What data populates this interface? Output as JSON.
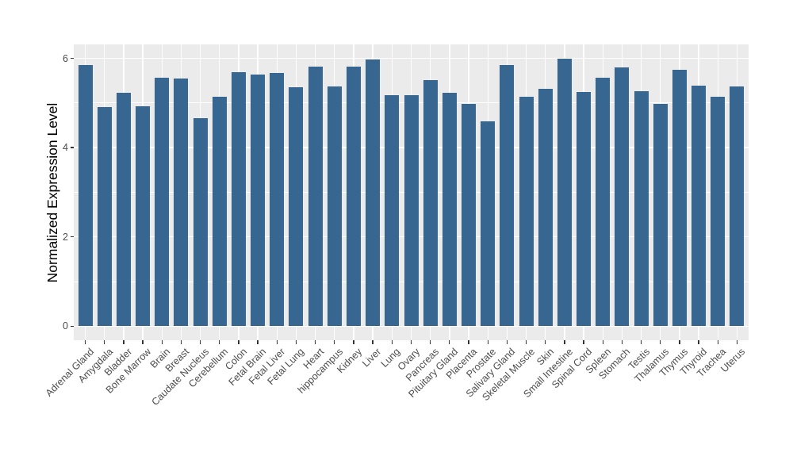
{
  "chart_data": {
    "type": "bar",
    "title": "",
    "xlabel": "",
    "ylabel": "Normalized Expression Level",
    "categories": [
      "Adrenal Gland",
      "Amygdala",
      "Bladder",
      "Bone Marrow",
      "Brain",
      "Breast",
      "Caudate Nucleus",
      "Cerebellum",
      "Colon",
      "Fetal Brain",
      "Fetal Liver",
      "Fetal Lung",
      "Heart",
      "hippocampus",
      "Kidney",
      "Liver",
      "Lung",
      "Ovary",
      "Pancreas",
      "Pituitary Gland",
      "Placenta",
      "Prostate",
      "Salivary Gland",
      "Skeletal Muscle",
      "Skin",
      "Small Intestine",
      "Spinal Cord",
      "Spleen",
      "Stomach",
      "Testis",
      "Thalamus",
      "Thymus",
      "Thyroid",
      "Trachea",
      "Uterus"
    ],
    "values": [
      5.85,
      4.9,
      5.22,
      4.93,
      5.56,
      5.55,
      4.66,
      5.13,
      5.69,
      5.64,
      5.67,
      5.35,
      5.82,
      5.37,
      5.82,
      5.97,
      5.17,
      5.17,
      5.51,
      5.22,
      4.98,
      4.59,
      5.85,
      5.13,
      5.32,
      5.99,
      5.24,
      5.57,
      5.8,
      5.26,
      4.97,
      5.74,
      5.38,
      5.13,
      5.37
    ],
    "ylim": [
      0,
      6.3
    ],
    "yticks": [
      "0",
      "2",
      "4",
      "6"
    ],
    "ytick_values": [
      0,
      2,
      4,
      6
    ],
    "yminor_values": [
      1,
      3,
      5
    ],
    "grid": "on",
    "legend": "none",
    "colors": {
      "bar": "#376790",
      "panel": "#EBEBEB",
      "grid": "#FFFFFF",
      "tick": "#333333",
      "tick_label": "#4D4D4D",
      "axis_title": "#000000",
      "background": "#FFFFFF"
    }
  }
}
